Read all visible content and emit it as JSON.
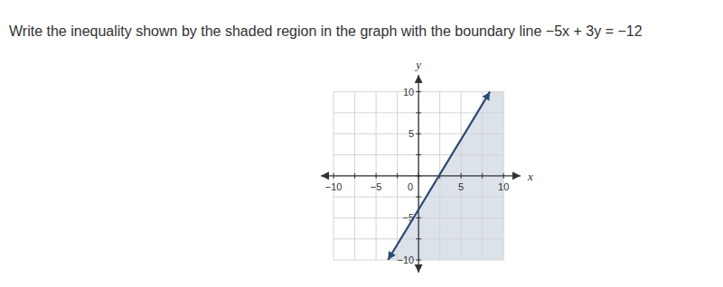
{
  "chart_data": {
    "type": "line",
    "title": "Write the inequality shown by the shaded region in the graph with the boundary line −5x + 3y = −12",
    "x_label": "x",
    "y_label": "y",
    "xlim": [
      -11.5,
      12
    ],
    "ylim": [
      -11.5,
      12
    ],
    "xticks": [
      {
        "value": -10,
        "label": "−10"
      },
      {
        "value": -5,
        "label": "−5"
      },
      0,
      5,
      10
    ],
    "yticks": [
      {
        "value": -10,
        "label": "−10"
      },
      {
        "value": -5,
        "label": "−5"
      },
      0,
      5,
      10
    ],
    "grid": true,
    "series": [
      {
        "type": "area",
        "color": "#dce2ea",
        "x": [
          -3.6,
          8.4,
          10,
          10
        ],
        "values": [
          -10,
          10,
          10,
          -10
        ]
      },
      {
        "type": "line",
        "color": "#2b4a6f",
        "marker": "arrow",
        "line_style": "solid",
        "x": [
          -3.6,
          8.4
        ],
        "values": [
          -10,
          10
        ]
      }
    ]
  }
}
